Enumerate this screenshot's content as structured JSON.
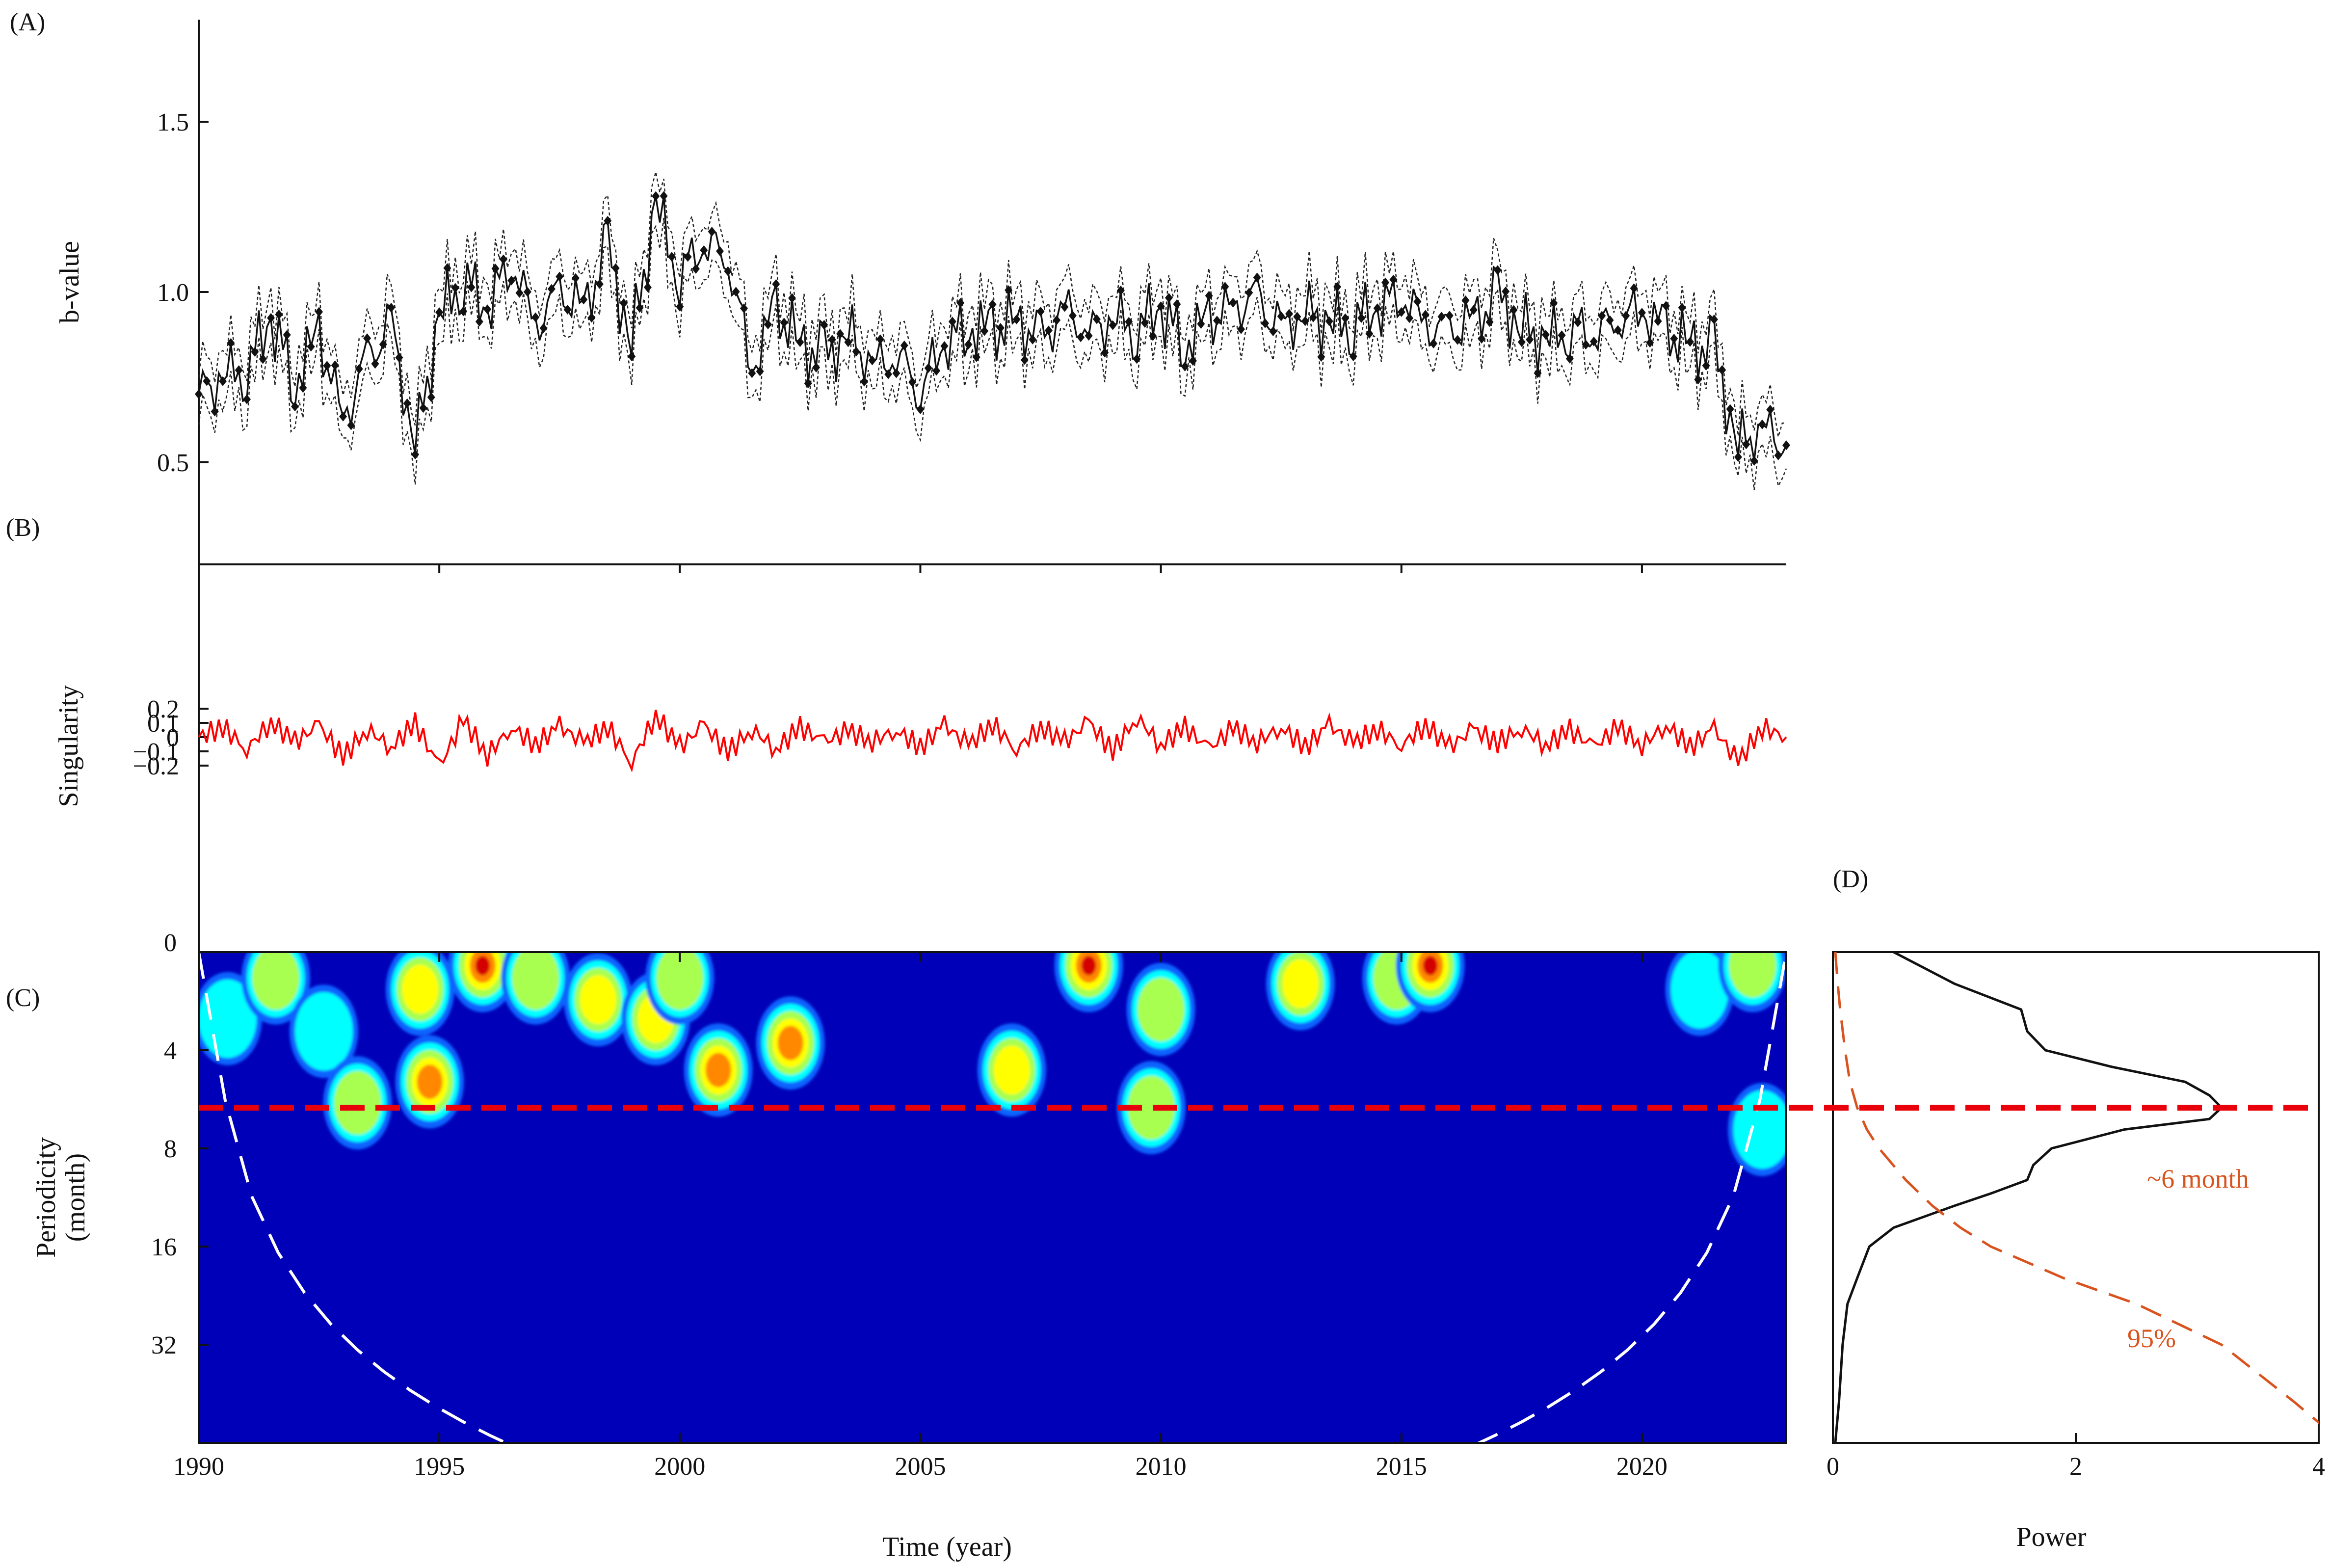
{
  "chart_data": [
    {
      "panel": "A",
      "panel_label": "(A)",
      "type": "line",
      "ylabel": "b-value",
      "y_ticks": [
        "0.5",
        "1.0",
        "1.5"
      ],
      "ylim": [
        0.2,
        1.8
      ],
      "xlim": [
        1990,
        2023
      ],
      "note": "b-value series with markers and dashed confidence bounds",
      "series": [
        {
          "name": "",
          "style": "solid-with-diamond-markers"
        },
        {
          "name": "",
          "style": "dotted-bounds"
        }
      ],
      "x": [
        1990.0,
        1990.5,
        1991.0,
        1991.5,
        1992.0,
        1992.5,
        1993.0,
        1993.5,
        1994.0,
        1994.5,
        1995.0,
        1995.5,
        1996.0,
        1996.5,
        1997.0,
        1997.5,
        1998.0,
        1998.5,
        1999.0,
        1999.5,
        2000.0,
        2000.5,
        2001.0,
        2001.5,
        2002.0,
        2002.5,
        2003.0,
        2003.5,
        2004.0,
        2004.5,
        2005.0,
        2005.5,
        2006.0,
        2006.5,
        2007.0,
        2007.5,
        2008.0,
        2008.5,
        2009.0,
        2009.5,
        2010.0,
        2010.5,
        2011.0,
        2011.5,
        2012.0,
        2012.5,
        2013.0,
        2013.5,
        2014.0,
        2014.5,
        2015.0,
        2015.5,
        2016.0,
        2016.5,
        2017.0,
        2017.5,
        2018.0,
        2018.5,
        2019.0,
        2019.5,
        2020.0,
        2020.5,
        2021.0,
        2021.5,
        2022.0,
        2022.5,
        2023.0
      ],
      "values": [
        0.7,
        0.75,
        0.78,
        0.92,
        0.74,
        0.88,
        0.62,
        0.8,
        0.9,
        0.55,
        0.92,
        1.05,
        0.95,
        1.1,
        0.9,
        1.0,
        0.95,
        1.12,
        0.85,
        1.25,
        1.05,
        1.15,
        1.1,
        0.78,
        0.95,
        0.85,
        0.8,
        0.88,
        0.78,
        0.82,
        0.72,
        0.85,
        0.9,
        0.88,
        0.92,
        0.85,
        0.95,
        0.88,
        0.92,
        0.9,
        0.95,
        0.85,
        0.92,
        0.95,
        0.98,
        0.88,
        0.95,
        0.9,
        0.92,
        0.95,
        1.0,
        0.9,
        0.88,
        0.92,
        0.98,
        0.9,
        0.85,
        0.9,
        0.88,
        0.92,
        0.95,
        0.88,
        0.85,
        0.82,
        0.55,
        0.6,
        0.55
      ]
    },
    {
      "panel": "B",
      "panel_label": "(B)",
      "type": "line",
      "ylabel": "Singularity",
      "y_ticks": [
        "0.2",
        "0.1",
        "0",
        "−0.1",
        "−0.2"
      ],
      "ylim": [
        -0.3,
        0.22
      ],
      "xlim": [
        1990,
        2023
      ],
      "series": [
        {
          "name": "",
          "color": "#ff0000"
        }
      ],
      "x": [
        1990.0,
        1990.5,
        1991.0,
        1991.5,
        1992.0,
        1992.5,
        1993.0,
        1993.5,
        1994.0,
        1994.5,
        1995.0,
        1995.5,
        1996.0,
        1996.5,
        1997.0,
        1997.5,
        1998.0,
        1998.5,
        1999.0,
        1999.5,
        2000.0,
        2000.5,
        2001.0,
        2001.5,
        2002.0,
        2002.5,
        2003.0,
        2003.5,
        2004.0,
        2004.5,
        2005.0,
        2005.5,
        2006.0,
        2006.5,
        2007.0,
        2007.5,
        2008.0,
        2008.5,
        2009.0,
        2009.5,
        2010.0,
        2010.5,
        2011.0,
        2011.5,
        2012.0,
        2012.5,
        2013.0,
        2013.5,
        2014.0,
        2014.5,
        2015.0,
        2015.5,
        2016.0,
        2016.5,
        2017.0,
        2017.5,
        2018.0,
        2018.5,
        2019.0,
        2019.5,
        2020.0,
        2020.5,
        2021.0,
        2021.5,
        2022.0,
        2022.5,
        2023.0
      ],
      "values": [
        0.0,
        0.1,
        -0.12,
        0.15,
        -0.05,
        0.12,
        -0.2,
        0.08,
        -0.1,
        0.14,
        -0.3,
        0.17,
        -0.18,
        0.1,
        -0.08,
        0.11,
        -0.06,
        0.1,
        -0.25,
        0.22,
        -0.1,
        0.12,
        -0.15,
        0.08,
        -0.12,
        0.1,
        -0.05,
        0.06,
        -0.04,
        0.07,
        -0.1,
        0.12,
        -0.08,
        0.13,
        -0.12,
        0.1,
        -0.05,
        0.15,
        -0.14,
        0.2,
        -0.08,
        0.1,
        -0.12,
        0.09,
        -0.05,
        0.1,
        -0.1,
        0.12,
        -0.06,
        0.08,
        -0.08,
        0.12,
        -0.1,
        0.08,
        -0.06,
        0.09,
        -0.08,
        0.07,
        -0.1,
        0.1,
        -0.08,
        0.12,
        -0.1,
        0.08,
        -0.25,
        0.1,
        0.0
      ]
    },
    {
      "panel": "C",
      "panel_label": "(C)",
      "type": "heatmap",
      "ylabel": "Periodicity\n(month)",
      "ylabel_lines": [
        "Periodicity",
        "(month)"
      ],
      "xlabel": "Time (year)",
      "x_ticks": [
        "1990",
        "1995",
        "2000",
        "2005",
        "2010",
        "2015",
        "2020"
      ],
      "y_ticks": [
        "0",
        "4",
        "8",
        "16",
        "32"
      ],
      "xlim": [
        1990,
        2023
      ],
      "yscale": "log2",
      "ylim_months": [
        2,
        64
      ],
      "cone_of_influence": true,
      "reference_period_months": 6,
      "colors": {
        "background": "#0000b8",
        "low": "#0a64ff",
        "mid": "#00ffff",
        "midhigh": "#a8ff50",
        "high": "#ffff00",
        "higher": "#ff8800",
        "max": "#d40000",
        "reference_line": "#e8000b",
        "coi": "#ffffff"
      },
      "hotspots": [
        {
          "year": 1990.6,
          "period": 3.2,
          "power": 2
        },
        {
          "year": 1991.6,
          "period": 2.4,
          "power": 3
        },
        {
          "year": 1992.6,
          "period": 3.5,
          "power": 2
        },
        {
          "year": 1993.3,
          "period": 5.8,
          "power": 3
        },
        {
          "year": 1994.6,
          "period": 2.6,
          "power": 4
        },
        {
          "year": 1994.8,
          "period": 5.0,
          "power": 5
        },
        {
          "year": 1995.9,
          "period": 2.2,
          "power": 6
        },
        {
          "year": 1997.0,
          "period": 2.4,
          "power": 3
        },
        {
          "year": 1998.3,
          "period": 2.8,
          "power": 4
        },
        {
          "year": 1999.5,
          "period": 3.2,
          "power": 4
        },
        {
          "year": 2000.0,
          "period": 2.4,
          "power": 3
        },
        {
          "year": 2000.8,
          "period": 4.6,
          "power": 5
        },
        {
          "year": 2002.3,
          "period": 3.8,
          "power": 5
        },
        {
          "year": 2006.9,
          "period": 4.6,
          "power": 4
        },
        {
          "year": 2008.5,
          "period": 2.2,
          "power": 6
        },
        {
          "year": 2009.8,
          "period": 6.0,
          "power": 3
        },
        {
          "year": 2010.0,
          "period": 3.0,
          "power": 3
        },
        {
          "year": 2012.9,
          "period": 2.5,
          "power": 4
        },
        {
          "year": 2014.9,
          "period": 2.4,
          "power": 3
        },
        {
          "year": 2015.6,
          "period": 2.2,
          "power": 6
        },
        {
          "year": 2021.2,
          "period": 2.6,
          "power": 2
        },
        {
          "year": 2022.3,
          "period": 2.2,
          "power": 3
        },
        {
          "year": 2022.5,
          "period": 7.0,
          "power": 2
        }
      ]
    },
    {
      "panel": "D",
      "panel_label": "(D)",
      "type": "line",
      "xlabel": "Power",
      "x_ticks": [
        "0",
        "2",
        "4"
      ],
      "xlim": [
        0,
        4
      ],
      "yscale": "log2",
      "ylim_months": [
        2,
        64
      ],
      "series": [
        {
          "name": "",
          "style": "solid",
          "color": "#111111",
          "period": [
            2,
            2.5,
            3,
            3.5,
            4,
            4.5,
            5,
            5.5,
            6,
            6.5,
            7,
            8,
            9,
            10,
            11,
            12,
            14,
            16,
            20,
            24,
            32,
            48,
            64
          ],
          "power": [
            0.5,
            1.0,
            1.55,
            1.6,
            1.75,
            2.3,
            2.9,
            3.1,
            3.2,
            3.1,
            2.4,
            1.8,
            1.65,
            1.6,
            1.3,
            1.0,
            0.5,
            0.3,
            0.2,
            0.12,
            0.08,
            0.05,
            0.02
          ]
        },
        {
          "name": "95%",
          "style": "dashed",
          "color": "#d9531e",
          "period": [
            2,
            2.5,
            3,
            4,
            5,
            6,
            7,
            8,
            10,
            12,
            14,
            16,
            20,
            24,
            32,
            48,
            64
          ],
          "power": [
            0.02,
            0.04,
            0.06,
            0.1,
            0.14,
            0.2,
            0.28,
            0.38,
            0.6,
            0.82,
            1.05,
            1.3,
            1.9,
            2.5,
            3.2,
            3.8,
            4.2
          ]
        }
      ],
      "annotations": [
        {
          "text": "~6 month",
          "color": "#d9531e"
        },
        {
          "text": "95%",
          "color": "#d9531e"
        }
      ]
    }
  ]
}
